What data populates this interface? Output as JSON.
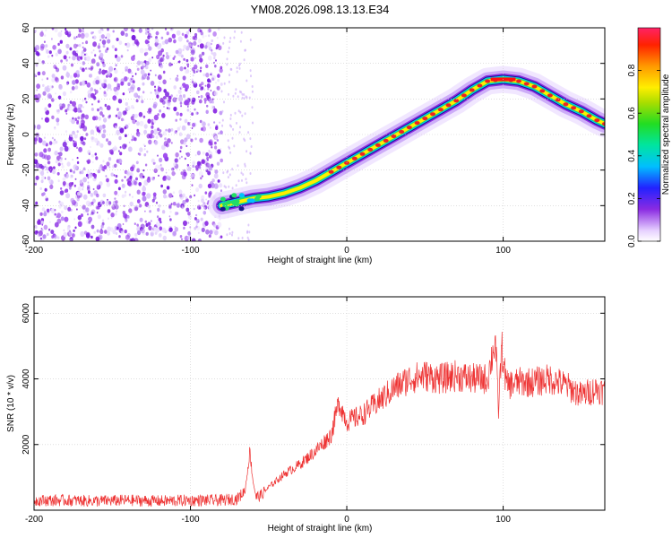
{
  "title": "YM08.2026.098.13.13.E34",
  "chart_data": [
    {
      "type": "heatmap",
      "xlabel": "Height of straight line (km)",
      "ylabel": "Frequency (Hz)",
      "xlim": [
        -200,
        165
      ],
      "ylim": [
        -60,
        60
      ],
      "xticks": [
        -200,
        -100,
        0,
        100
      ],
      "yticks": [
        -60,
        -40,
        -20,
        0,
        20,
        40,
        60
      ],
      "colorbar": {
        "label": "Normalized spectral amplitude",
        "range": [
          0,
          1
        ],
        "ticks": [
          "0.0",
          "0.2",
          "0.4",
          "0.6",
          "0.8"
        ]
      },
      "ridge": {
        "x": [
          -80,
          -70,
          -60,
          -50,
          -40,
          -30,
          -20,
          -10,
          0,
          10,
          20,
          30,
          40,
          50,
          60,
          70,
          80,
          90,
          100,
          110,
          120,
          130,
          140,
          150,
          160,
          165
        ],
        "y": [
          -40,
          -38,
          -36,
          -35,
          -33,
          -30,
          -26,
          -21,
          -16,
          -11,
          -6,
          -1,
          4,
          9,
          14,
          19,
          25,
          30,
          31,
          30,
          27,
          22,
          17,
          13,
          8,
          6
        ]
      },
      "noise_region_x": [
        -200,
        -80
      ],
      "grid": true
    },
    {
      "type": "line",
      "xlabel": "Height of straight line (km)",
      "ylabel": "SNR (10 * v/v)",
      "xlim": [
        -200,
        165
      ],
      "ylim": [
        0,
        6500
      ],
      "xticks": [
        -200,
        -100,
        0,
        100
      ],
      "yticks": [
        2000,
        4000,
        6000
      ],
      "series": [
        {
          "color": "#ee3333",
          "x": [
            -200,
            -180,
            -160,
            -140,
            -120,
            -100,
            -80,
            -70,
            -65,
            -62,
            -60,
            -58,
            -55,
            -50,
            -40,
            -30,
            -20,
            -10,
            -5,
            0,
            10,
            20,
            30,
            40,
            50,
            60,
            70,
            80,
            90,
            95,
            97,
            99,
            102,
            110,
            120,
            130,
            140,
            150,
            160,
            165
          ],
          "y": [
            300,
            300,
            280,
            300,
            280,
            300,
            300,
            350,
            600,
            1800,
            900,
            400,
            450,
            700,
            1100,
            1400,
            1800,
            2300,
            3300,
            2700,
            2900,
            3300,
            3700,
            4000,
            4100,
            4000,
            4100,
            4000,
            4000,
            5200,
            3000,
            5000,
            3800,
            3900,
            3900,
            4000,
            3800,
            3500,
            3700,
            3600
          ]
        }
      ],
      "grid": true
    }
  ]
}
